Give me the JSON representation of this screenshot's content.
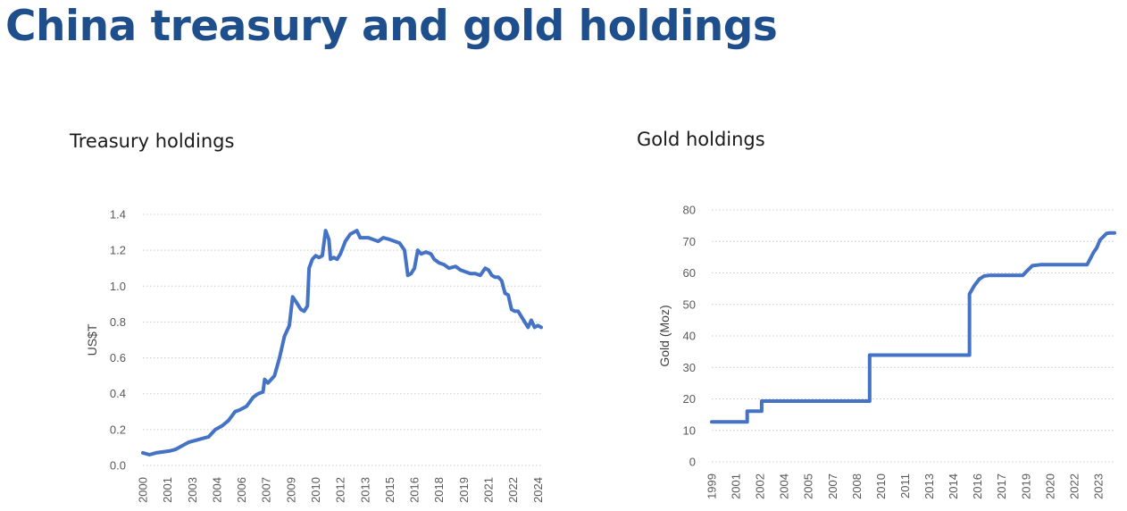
{
  "page": {
    "title": "China treasury and gold holdings",
    "accent": "#1f4e8c",
    "line_color": "#4472c4"
  },
  "chart_data": [
    {
      "id": "treasury",
      "type": "line",
      "title": "Treasury holdings",
      "xlabel": "",
      "ylabel": "US$T",
      "ylim": [
        0,
        1.4
      ],
      "xlim": [
        2000.0,
        2024.2
      ],
      "yticks": [
        "0.0",
        "0.2",
        "0.4",
        "0.6",
        "0.8",
        "1.0",
        "1.2",
        "1.4"
      ],
      "ytick_values": [
        0.0,
        0.2,
        0.4,
        0.6,
        0.8,
        1.0,
        1.2,
        1.4
      ],
      "xtick_labels": [
        "2000",
        "2001",
        "2003",
        "2004",
        "2006",
        "2007",
        "2009",
        "2010",
        "2012",
        "2013",
        "2015",
        "2016",
        "2018",
        "2019",
        "2021",
        "2022",
        "2024"
      ],
      "xtick_values": [
        2000.0,
        2001.5,
        2003.0,
        2004.5,
        2006.0,
        2007.5,
        2009.0,
        2010.5,
        2012.0,
        2013.5,
        2015.0,
        2016.5,
        2018.0,
        2019.5,
        2021.0,
        2022.5,
        2024.0
      ],
      "grid": true,
      "series": [
        {
          "name": "Treasury holdings",
          "x": [
            2000.0,
            2000.4,
            2000.8,
            2001.2,
            2001.6,
            2002.0,
            2002.4,
            2002.8,
            2003.2,
            2003.6,
            2004.0,
            2004.4,
            2004.8,
            2005.2,
            2005.6,
            2005.9,
            2006.3,
            2006.7,
            2007.0,
            2007.3,
            2007.4,
            2007.6,
            2008.0,
            2008.3,
            2008.6,
            2008.9,
            2009.1,
            2009.4,
            2009.6,
            2009.8,
            2010.0,
            2010.1,
            2010.3,
            2010.5,
            2010.7,
            2010.9,
            2011.1,
            2011.3,
            2011.4,
            2011.6,
            2011.8,
            2012.0,
            2012.3,
            2012.6,
            2013.0,
            2013.2,
            2013.4,
            2013.7,
            2014.0,
            2014.3,
            2014.6,
            2015.0,
            2015.3,
            2015.6,
            2015.9,
            2016.1,
            2016.3,
            2016.5,
            2016.7,
            2016.9,
            2017.2,
            2017.5,
            2017.7,
            2018.0,
            2018.3,
            2018.6,
            2019.0,
            2019.3,
            2019.6,
            2019.9,
            2020.2,
            2020.5,
            2020.8,
            2021.0,
            2021.2,
            2021.4,
            2021.6,
            2021.8,
            2022.0,
            2022.2,
            2022.4,
            2022.6,
            2022.8,
            2023.0,
            2023.2,
            2023.4,
            2023.6,
            2023.8,
            2024.0,
            2024.2
          ],
          "values": [
            0.07,
            0.06,
            0.07,
            0.075,
            0.08,
            0.09,
            0.11,
            0.13,
            0.14,
            0.15,
            0.16,
            0.2,
            0.22,
            0.25,
            0.3,
            0.31,
            0.33,
            0.38,
            0.4,
            0.41,
            0.48,
            0.46,
            0.5,
            0.6,
            0.72,
            0.78,
            0.94,
            0.9,
            0.87,
            0.86,
            0.89,
            1.1,
            1.15,
            1.17,
            1.16,
            1.17,
            1.31,
            1.26,
            1.15,
            1.16,
            1.15,
            1.18,
            1.25,
            1.29,
            1.31,
            1.27,
            1.27,
            1.27,
            1.26,
            1.25,
            1.27,
            1.26,
            1.25,
            1.24,
            1.2,
            1.06,
            1.07,
            1.1,
            1.2,
            1.18,
            1.19,
            1.18,
            1.15,
            1.13,
            1.12,
            1.1,
            1.11,
            1.09,
            1.08,
            1.07,
            1.07,
            1.06,
            1.1,
            1.09,
            1.06,
            1.05,
            1.05,
            1.03,
            0.96,
            0.95,
            0.87,
            0.86,
            0.86,
            0.83,
            0.8,
            0.77,
            0.81,
            0.77,
            0.78,
            0.77
          ]
        }
      ]
    },
    {
      "id": "gold",
      "type": "line",
      "title": "Gold holdings",
      "xlabel": "",
      "ylabel": "Gold (Moz)",
      "ylim": [
        0,
        80
      ],
      "xlim": [
        1999.0,
        2024.0
      ],
      "yticks": [
        "0",
        "10",
        "20",
        "30",
        "40",
        "50",
        "60",
        "70",
        "80"
      ],
      "ytick_values": [
        0,
        10,
        20,
        30,
        40,
        50,
        60,
        70,
        80
      ],
      "xtick_labels": [
        "1999",
        "2001",
        "2002",
        "2004",
        "2005",
        "2007",
        "2008",
        "2010",
        "2011",
        "2013",
        "2014",
        "2016",
        "2017",
        "2019",
        "2020",
        "2022",
        "2023"
      ],
      "xtick_values": [
        1999.0,
        2000.5,
        2002.0,
        2003.5,
        2005.0,
        2006.5,
        2008.0,
        2009.5,
        2011.0,
        2012.5,
        2014.0,
        2015.5,
        2017.0,
        2018.5,
        2020.0,
        2021.5,
        2023.0
      ],
      "grid": true,
      "series": [
        {
          "name": "Gold holdings",
          "x": [
            1999.0,
            2001.2,
            2001.2,
            2002.1,
            2002.1,
            2008.8,
            2008.8,
            2015.0,
            2015.0,
            2015.3,
            2015.6,
            2015.9,
            2016.2,
            2016.6,
            2017.5,
            2018.3,
            2018.6,
            2018.9,
            2019.4,
            2020.5,
            2021.5,
            2022.3,
            2022.5,
            2022.7,
            2022.9,
            2023.1,
            2023.3,
            2023.5,
            2023.7,
            2024.0
          ],
          "values": [
            12.7,
            12.7,
            16.1,
            16.1,
            19.3,
            19.3,
            33.9,
            33.9,
            53.3,
            56.0,
            58.0,
            59.0,
            59.2,
            59.2,
            59.2,
            59.2,
            60.8,
            62.3,
            62.6,
            62.6,
            62.6,
            62.6,
            64.5,
            66.5,
            68.0,
            70.5,
            71.5,
            72.5,
            72.7,
            72.7
          ]
        }
      ]
    }
  ]
}
